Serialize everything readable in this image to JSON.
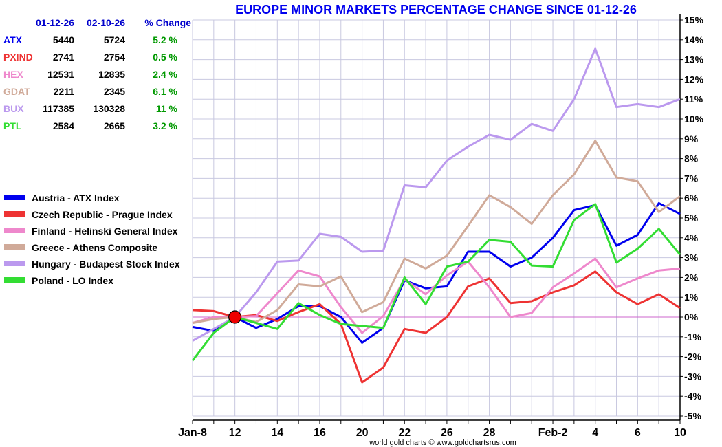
{
  "chart_data": {
    "type": "line",
    "title": "EUROPE MINOR MARKETS PERCENTAGE CHANGE SINCE 01-12-26",
    "credit": "world gold charts © www.goldchartsrus.com",
    "ylim": [
      -5,
      15
    ],
    "y_ticks": [
      "15%",
      "14%",
      "13%",
      "12%",
      "11%",
      "10%",
      "9%",
      "8%",
      "7%",
      "6%",
      "5%",
      "4%",
      "3%",
      "2%",
      "1%",
      "0%",
      "-1%",
      "-2%",
      "-3%",
      "-4%",
      "-5%"
    ],
    "x_ticks": [
      {
        "index": 0,
        "label": "Jan-8"
      },
      {
        "index": 2,
        "label": "12"
      },
      {
        "index": 4,
        "label": "14"
      },
      {
        "index": 6,
        "label": "16"
      },
      {
        "index": 8,
        "label": "20"
      },
      {
        "index": 10,
        "label": "22"
      },
      {
        "index": 12,
        "label": "26"
      },
      {
        "index": 14,
        "label": "28"
      },
      {
        "index": 17,
        "label": "Feb-2"
      },
      {
        "index": 19,
        "label": "4"
      },
      {
        "index": 21,
        "label": "6"
      },
      {
        "index": 23,
        "label": "10"
      }
    ],
    "n_points": 24,
    "baseline_index": 2,
    "table": {
      "headers": [
        "01-12-26",
        "02-10-26",
        "% Change"
      ],
      "rows": [
        {
          "name": "ATX",
          "start": "5440",
          "end": "5724",
          "change": "5.2 %",
          "color": "#0000ee"
        },
        {
          "name": "PXIND",
          "start": "2741",
          "end": "2754",
          "change": "0.5 %",
          "color": "#ee3333"
        },
        {
          "name": "HEX",
          "start": "12531",
          "end": "12835",
          "change": "2.4 %",
          "color": "#ee88cc"
        },
        {
          "name": "GDAT",
          "start": "2211",
          "end": "2345",
          "change": "6.1 %",
          "color": "#d0aa99"
        },
        {
          "name": "BUX",
          "start": "117385",
          "end": "130328",
          "change": "11 %",
          "color": "#bb99ee"
        },
        {
          "name": "PTL",
          "start": "2584",
          "end": "2665",
          "change": "3.2 %",
          "color": "#33dd33"
        }
      ]
    },
    "series": [
      {
        "name": "Austria - ATX Index",
        "color": "#0000ee",
        "values": [
          -0.5,
          -0.7,
          0.0,
          -0.55,
          -0.1,
          0.55,
          0.55,
          0.0,
          -1.3,
          -0.55,
          1.85,
          1.45,
          1.55,
          3.3,
          3.3,
          2.55,
          3.0,
          4.0,
          5.4,
          5.65,
          3.6,
          4.15,
          5.75,
          5.2
        ]
      },
      {
        "name": "Czech Republic - Prague Index",
        "color": "#ee3333",
        "values": [
          0.35,
          0.3,
          0.0,
          0.1,
          -0.2,
          0.25,
          0.65,
          -0.35,
          -3.3,
          -2.55,
          -0.6,
          -0.8,
          0.0,
          1.55,
          1.95,
          0.7,
          0.8,
          1.25,
          1.6,
          2.3,
          1.25,
          0.65,
          1.15,
          0.45
        ]
      },
      {
        "name": "Finland - Helinski General Index",
        "color": "#ee88cc",
        "values": [
          -0.3,
          0.0,
          0.0,
          0.05,
          1.2,
          2.35,
          2.05,
          0.5,
          -0.8,
          0.05,
          1.9,
          1.15,
          2.1,
          2.8,
          1.5,
          0.0,
          0.2,
          1.5,
          2.2,
          2.95,
          1.5,
          1.95,
          2.35,
          2.45
        ]
      },
      {
        "name": "Greece - Athens Composite",
        "color": "#d0aa99",
        "values": [
          -0.3,
          -0.1,
          0.0,
          -0.25,
          0.35,
          1.65,
          1.55,
          2.05,
          0.25,
          0.75,
          2.95,
          2.45,
          3.1,
          4.6,
          6.15,
          5.55,
          4.7,
          6.15,
          7.2,
          8.9,
          7.05,
          6.85,
          5.3,
          6.1
        ]
      },
      {
        "name": "Hungary - Budapest Stock Index",
        "color": "#bb99ee",
        "values": [
          -1.2,
          -0.6,
          0.0,
          1.25,
          2.8,
          2.85,
          4.2,
          4.05,
          3.3,
          3.35,
          6.65,
          6.55,
          7.9,
          8.6,
          9.2,
          8.95,
          9.75,
          9.4,
          11.0,
          13.55,
          10.6,
          10.75,
          10.6,
          11.0
        ]
      },
      {
        "name": "Poland - LO Index",
        "color": "#33dd33",
        "values": [
          -2.2,
          -0.8,
          0.0,
          -0.3,
          -0.6,
          0.7,
          0.1,
          -0.35,
          -0.45,
          -0.55,
          2.0,
          0.65,
          2.55,
          2.8,
          3.9,
          3.8,
          2.6,
          2.55,
          4.9,
          5.7,
          2.75,
          3.45,
          4.45,
          3.15
        ]
      }
    ],
    "colors": {
      "title": "#0000ee",
      "table_header": "#0000cc",
      "change": "#009900",
      "grid": "#c8c8e0",
      "zero_line": "#cc66cc",
      "marker": "#ee0000"
    }
  }
}
